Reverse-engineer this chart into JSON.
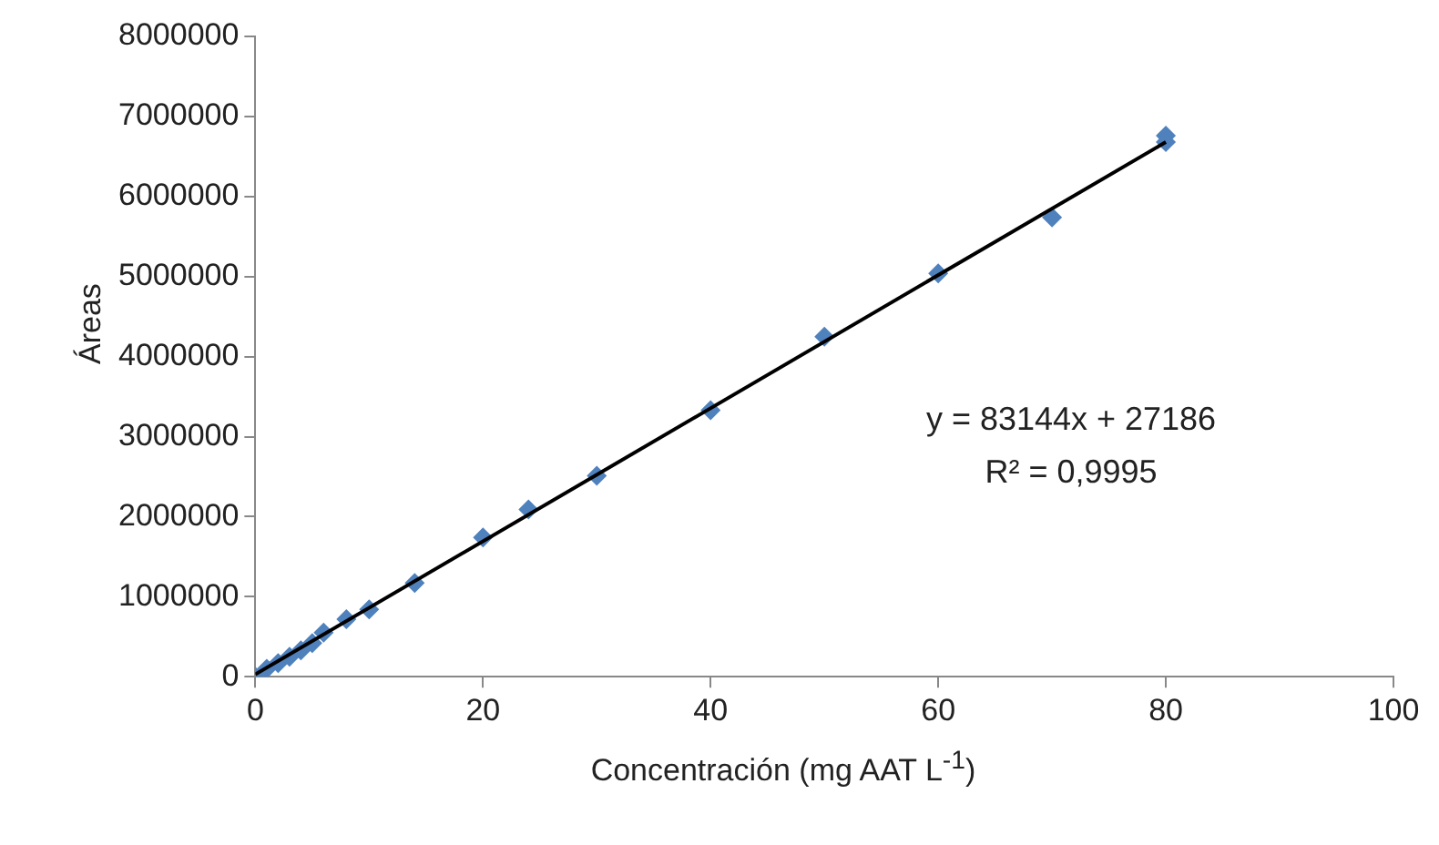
{
  "chart_data": {
    "type": "scatter",
    "xlabel": "Concentración (mg AAT L$^{-1}$)",
    "ylabel": "Áreas",
    "marker": "diamond",
    "grid": false,
    "legend": false,
    "xlim": [
      0,
      100
    ],
    "xticks": [
      0,
      20,
      40,
      60,
      80,
      100
    ],
    "ylim": [
      0,
      8000000
    ],
    "yticks": [
      0,
      1000000,
      2000000,
      3000000,
      4000000,
      5000000,
      6000000,
      7000000,
      8000000
    ],
    "annotations": [
      "y = 83144x + 27186",
      "R² = 0,9995"
    ],
    "series": [
      {
        "color": "#4f81bd",
        "x": [
          0,
          1,
          2,
          3,
          4,
          5,
          6,
          8,
          10,
          14,
          20,
          24,
          30,
          40,
          50,
          60,
          70,
          80,
          80
        ],
        "values": [
          0,
          100000,
          170000,
          250000,
          330000,
          420000,
          550000,
          720000,
          840000,
          1170000,
          1740000,
          2090000,
          2510000,
          3330000,
          4250000,
          5040000,
          5740000,
          6760000,
          6680000
        ]
      },
      {
        "type": "line",
        "color": "#000000",
        "marker": "none",
        "x": [
          0,
          80
        ],
        "values": [
          30000,
          6680000
        ]
      }
    ]
  }
}
